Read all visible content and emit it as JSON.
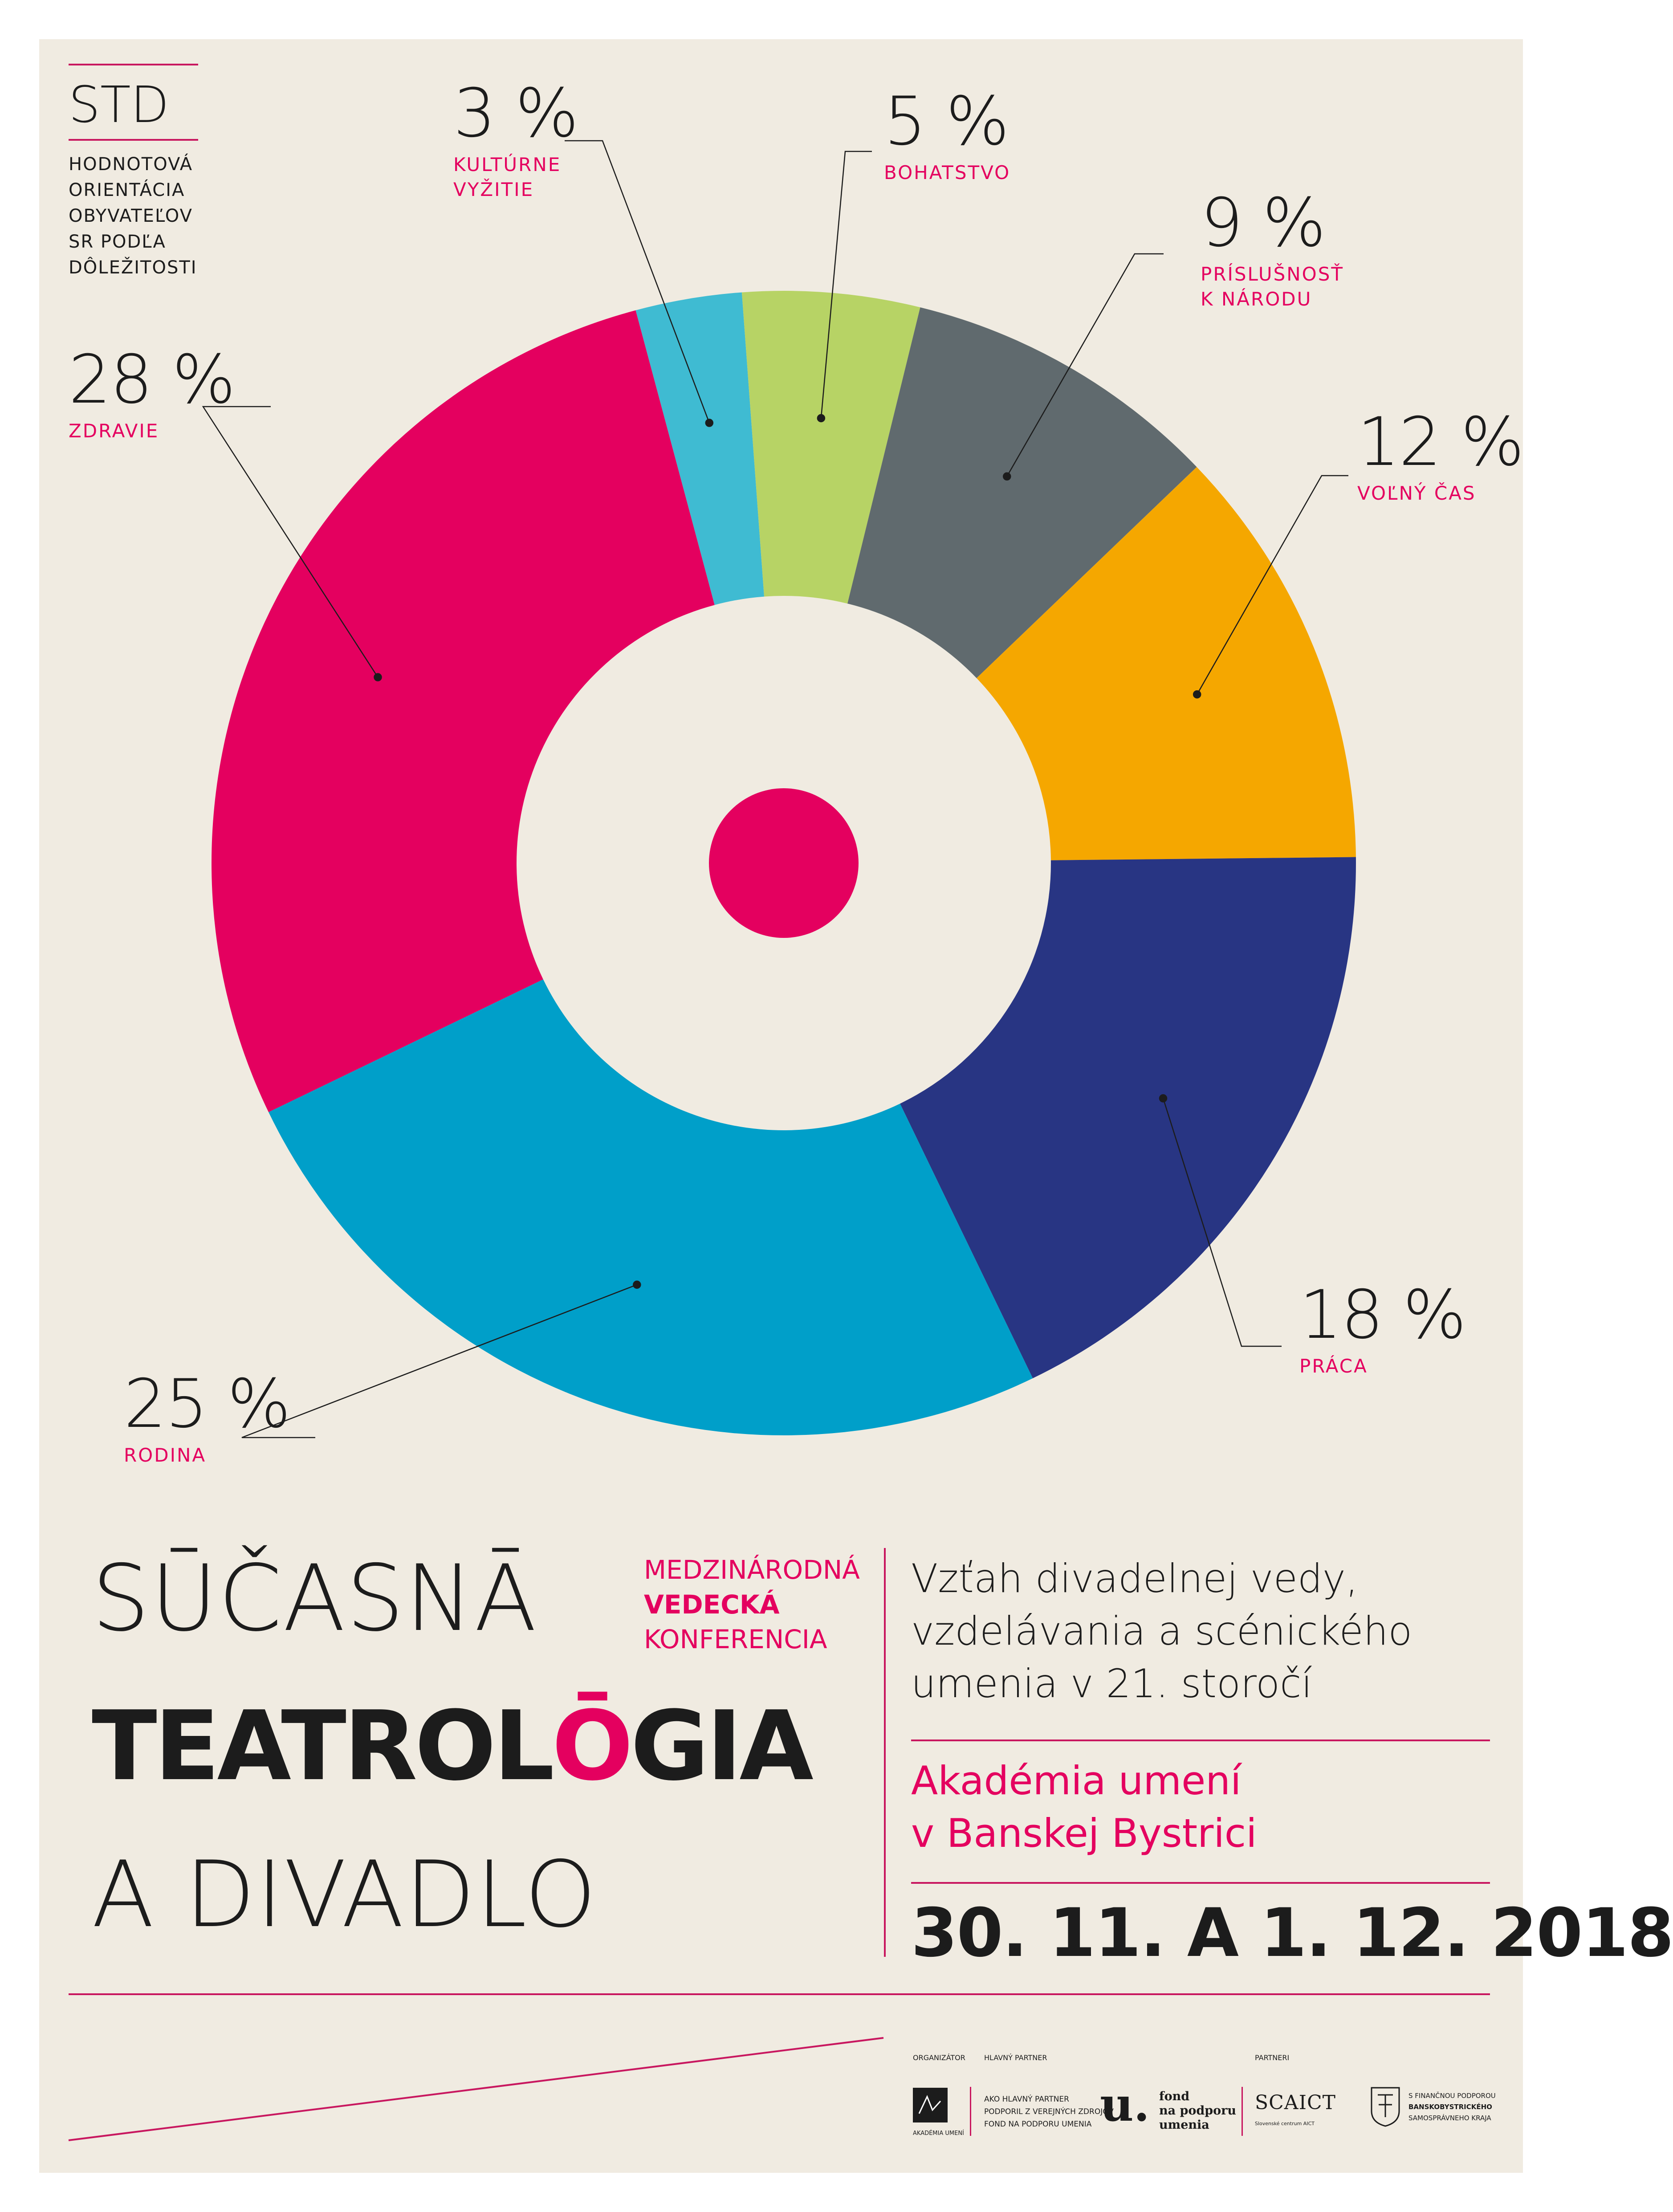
{
  "header": {
    "std": "STD",
    "description": [
      "HODNOTOVÁ",
      "ORIENTÁCIA",
      "OBYVATEĽOV",
      "SR PODĽA",
      "DÔLEŽITOSTI"
    ]
  },
  "chart_data": {
    "type": "pie",
    "donut": true,
    "slices": [
      {
        "name_lines": [
          "KULTÚRNE",
          "VYŽITIE"
        ],
        "value": 3,
        "label": "3 %",
        "color": "#3fbbd2"
      },
      {
        "name_lines": [
          "BOHATSTVO"
        ],
        "value": 5,
        "label": "5 %",
        "color": "#b7d365"
      },
      {
        "name_lines": [
          "PRÍSLUŠNOSŤ",
          "K NÁRODU"
        ],
        "value": 9,
        "label": "9 %",
        "color": "#606a6e"
      },
      {
        "name_lines": [
          "VOĽNÝ ČAS"
        ],
        "value": 12,
        "label": "12 %",
        "color": "#f5a700"
      },
      {
        "name_lines": [
          "PRÁCA"
        ],
        "value": 18,
        "label": "18 %",
        "color": "#283583"
      },
      {
        "name_lines": [
          "RODINA"
        ],
        "value": 25,
        "label": "25 %",
        "color": "#009fc9"
      },
      {
        "name_lines": [
          "ZDRAVIE"
        ],
        "value": 28,
        "label": "28 %",
        "color": "#e4005f"
      }
    ],
    "center_dot_color": "#e4005f"
  },
  "title": {
    "line1": "SŪČASNĀ",
    "line2_a": "TEATROL",
    "line2_o": "Ō",
    "line2_b": "GIA",
    "line3": "A DIVADLO"
  },
  "conference": {
    "line1": "MEDZINÁRODNÁ",
    "line2": "VEDECKÁ",
    "line3": "KONFERENCIA"
  },
  "subtitle": [
    "Vzťah divadelnej vedy,",
    "vzdelávania a scénického",
    "umenia v 21. storočí"
  ],
  "venue": [
    "Akadémia umení",
    "v Banskej Bystrici"
  ],
  "date": "30. 11. A 1. 12. 2018",
  "footer": {
    "organizer_caption": "ORGANIZÁTOR",
    "organizer_name": "AKADÉMIA UMENÍ",
    "main_partner_caption": "HLAVNÝ PARTNER",
    "main_partner_text": [
      "AKO HLAVNÝ PARTNER",
      "PODPORIL Z VEREJNÝCH ZDROJOV",
      "FOND NA PODPORU UMENIA"
    ],
    "fpu_mark": "u.",
    "fpu_text": [
      "fond",
      "na podporu",
      "umenia"
    ],
    "partners_caption": "PARTNERI",
    "scaict": "SCAICT",
    "scaict_sub": "Slovenské centrum AICT",
    "region_text": [
      "S FINANČNOU PODPOROU",
      "BANSKOBYSTRICKÉHO",
      "SAMOSPRÁVNEHO KRAJA"
    ]
  }
}
